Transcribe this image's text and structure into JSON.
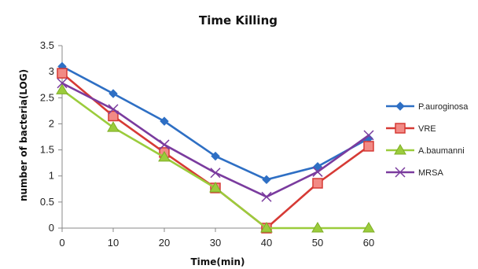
{
  "chart_data": {
    "type": "line",
    "title": "Time Killing",
    "xlabel": "Time(min)",
    "ylabel": "number of bacteria(LOG)",
    "x": [
      0,
      10,
      20,
      30,
      40,
      50,
      60
    ],
    "xlim": [
      0,
      60
    ],
    "ylim": [
      0,
      3.5
    ],
    "x_ticks": [
      "0",
      "10",
      "20",
      "30",
      "40",
      "50",
      "60"
    ],
    "y_ticks": [
      "0",
      "0.5",
      "1",
      "1.5",
      "2",
      "2.5",
      "3",
      "3.5"
    ],
    "grid": false,
    "legend_position": "right",
    "series": [
      {
        "name": "P.auroginosa",
        "color": "#2e6fc4",
        "marker": "diamond",
        "values": [
          3.1,
          2.58,
          2.05,
          1.38,
          0.93,
          1.18,
          1.72
        ]
      },
      {
        "name": "VRE",
        "color": "#d63a35",
        "marker": "square",
        "values": [
          2.97,
          2.15,
          1.45,
          0.77,
          0.0,
          0.86,
          1.57
        ]
      },
      {
        "name": "A.baumanni",
        "color": "#9bcc3c",
        "marker": "triangle",
        "values": [
          2.65,
          1.93,
          1.36,
          0.77,
          0.0,
          0.0,
          0.0
        ]
      },
      {
        "name": "MRSA",
        "color": "#7a3b9e",
        "marker": "x",
        "values": [
          2.78,
          2.28,
          1.6,
          1.06,
          0.6,
          1.08,
          1.78
        ]
      }
    ]
  }
}
